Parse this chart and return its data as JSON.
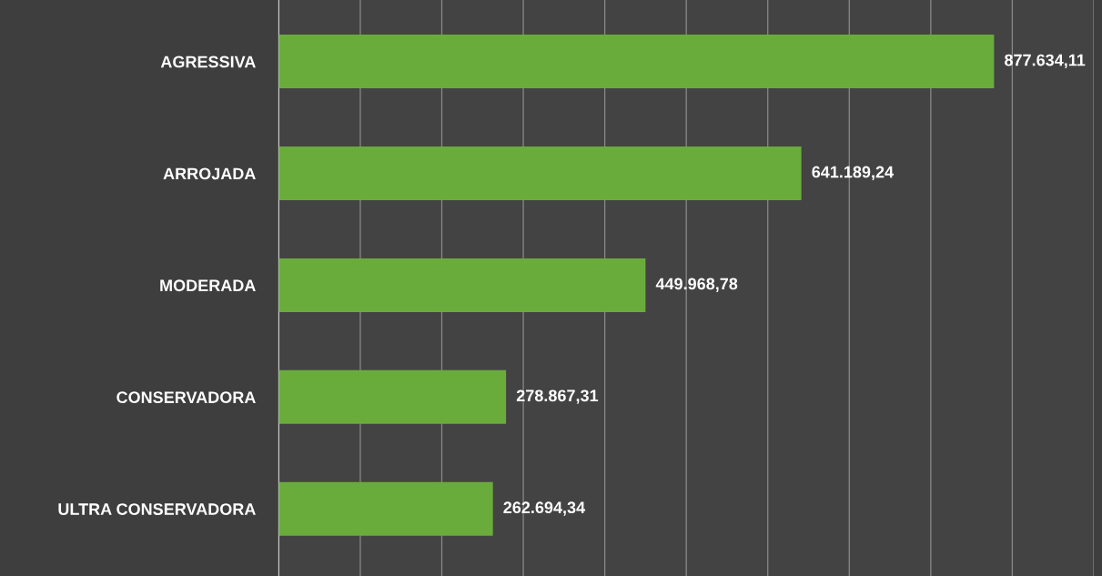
{
  "chart_data": {
    "type": "bar",
    "orientation": "horizontal",
    "categories": [
      "AGRESSIVA",
      "ARROJADA",
      "MODERADA",
      "CONSERVADORA",
      "ULTRA CONSERVADORA"
    ],
    "values": [
      877634.11,
      641189.24,
      449968.78,
      278867.31,
      262694.34
    ],
    "value_labels": [
      "877.634,11",
      "641.189,24",
      "449.968,78",
      "278.867,31",
      "262.694,34"
    ],
    "color": "#6aac3c",
    "xlim": [
      0,
      1000000
    ],
    "xticks": [
      {
        "value": 0,
        "label": null
      },
      {
        "value": 100000,
        "label": null
      },
      {
        "value": 200000,
        "label": null
      },
      {
        "value": 300000,
        "label": null
      },
      {
        "value": 400000,
        "label": null
      },
      {
        "value": 500000,
        "label": null
      },
      {
        "value": 600000,
        "label": null
      },
      {
        "value": 700000,
        "label": null
      },
      {
        "value": 800000,
        "label": null
      },
      {
        "value": 900000,
        "label": null
      },
      {
        "value": 1000000,
        "label": null
      }
    ],
    "grid": "x",
    "tick_labels": "y"
  }
}
